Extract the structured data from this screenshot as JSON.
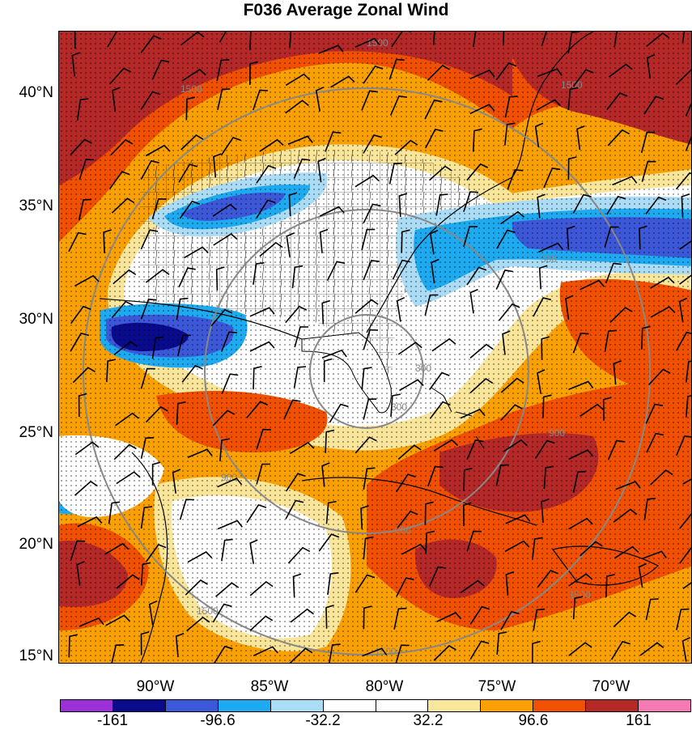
{
  "title": "F036 Average Zonal Wind",
  "lat_labels": [
    "40°N",
    "35°N",
    "30°N",
    "25°N",
    "20°N",
    "15°N"
  ],
  "lon_labels": [
    "90°W",
    "85°W",
    "80°W",
    "75°W",
    "70°W"
  ],
  "colorbar": {
    "colors": [
      "#9b30d8",
      "#0a0a8c",
      "#3c58d8",
      "#1eaaf0",
      "#aadcf5",
      "#ffffff",
      "#ffffff",
      "#fae69a",
      "#faa000",
      "#f05000",
      "#b42828",
      "#f57ab4"
    ],
    "labels": [
      "-161",
      "-96.6",
      "-32.2",
      "32.2",
      "96.6",
      "161"
    ]
  },
  "contour_labels": [
    "1500",
    "1500",
    "1500",
    "300",
    "300",
    "300",
    "900",
    "900",
    "900",
    "1500",
    "1500",
    "1500"
  ]
}
